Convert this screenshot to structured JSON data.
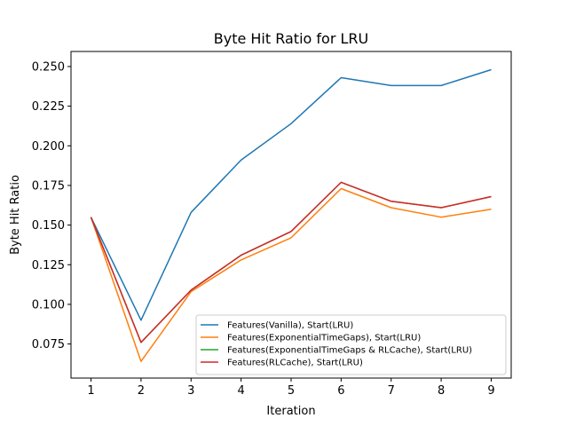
{
  "chart_data": {
    "type": "line",
    "title": "Byte Hit Ratio for LRU",
    "xlabel": "Iteration",
    "ylabel": "Byte Hit Ratio",
    "x": [
      1,
      2,
      3,
      4,
      5,
      6,
      7,
      8,
      9
    ],
    "xlim": [
      0.6,
      9.4
    ],
    "ylim": [
      0.0535,
      0.2595
    ],
    "yticks": [
      0.075,
      0.1,
      0.125,
      0.15,
      0.175,
      0.2,
      0.225,
      0.25
    ],
    "ytick_labels": [
      "0.075",
      "0.100",
      "0.125",
      "0.150",
      "0.175",
      "0.200",
      "0.225",
      "0.250"
    ],
    "xtick_labels": [
      "1",
      "2",
      "3",
      "4",
      "5",
      "6",
      "7",
      "8",
      "9"
    ],
    "grid": false,
    "legend_position": "lower-right",
    "series": [
      {
        "name": "Features(Vanilla), Start(LRU)",
        "color": "#1f77b4",
        "values": [
          0.155,
          0.09,
          0.158,
          0.191,
          0.214,
          0.243,
          0.238,
          0.238,
          0.248
        ]
      },
      {
        "name": "Features(ExponentialTimeGaps), Start(LRU)",
        "color": "#ff7f0e",
        "values": [
          0.155,
          0.064,
          0.108,
          0.128,
          0.142,
          0.173,
          0.161,
          0.155,
          0.16
        ]
      },
      {
        "name": "Features(ExponentialTimeGaps & RLCache), Start(LRU)",
        "color": "#2ca02c",
        "values": [
          0.155,
          0.076,
          0.109,
          0.131,
          0.146,
          0.177,
          0.165,
          0.161,
          0.168
        ]
      },
      {
        "name": "Features(RLCache), Start(LRU)",
        "color": "#d62728",
        "values": [
          0.155,
          0.076,
          0.109,
          0.131,
          0.146,
          0.177,
          0.165,
          0.161,
          0.168
        ]
      }
    ]
  }
}
